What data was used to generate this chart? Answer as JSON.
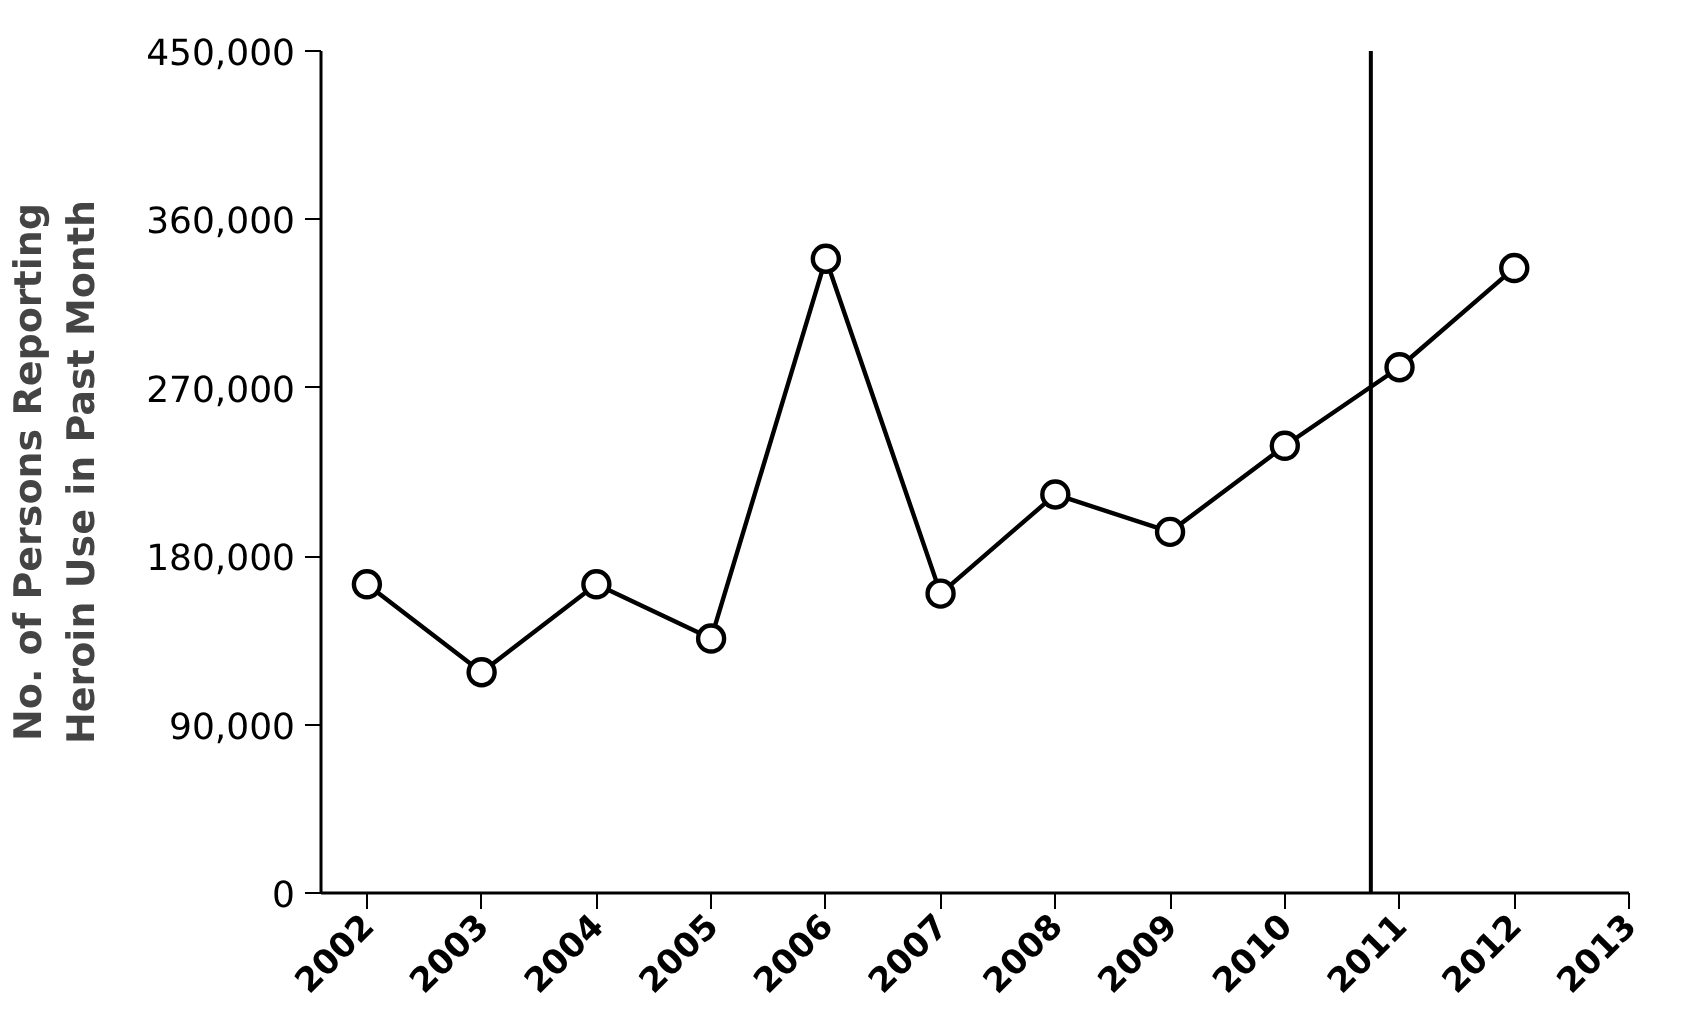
{
  "chart_data": {
    "type": "line",
    "ylabel": "No. of Persons Reporting\nHeroin Use in Past Month",
    "x": [
      2002,
      2003,
      2004,
      2005,
      2006,
      2007,
      2008,
      2009,
      2010,
      2011,
      2012
    ],
    "values": [
      165000,
      118000,
      165000,
      136000,
      339000,
      160000,
      213000,
      193000,
      239000,
      281000,
      334000
    ],
    "color": "#000000",
    "marker": "circle",
    "line_style": "solid",
    "xlim": [
      2001.6,
      2013
    ],
    "xticks": [
      2002,
      2003,
      2004,
      2005,
      2006,
      2007,
      2008,
      2009,
      2010,
      2011,
      2012,
      2013
    ],
    "ylim": [
      0,
      450000
    ],
    "yticks": [
      {
        "value": 0,
        "label": "0"
      },
      {
        "value": 90000,
        "label": "90,000"
      },
      {
        "value": 180000,
        "label": "180,000"
      },
      {
        "value": 270000,
        "label": "270,000"
      },
      {
        "value": 360000,
        "label": "360,000"
      },
      {
        "value": 450000,
        "label": "450,000"
      }
    ],
    "ref_lines": [
      {
        "axis": "x",
        "value": 2010.75,
        "color": "#000000"
      }
    ],
    "grid": false
  }
}
